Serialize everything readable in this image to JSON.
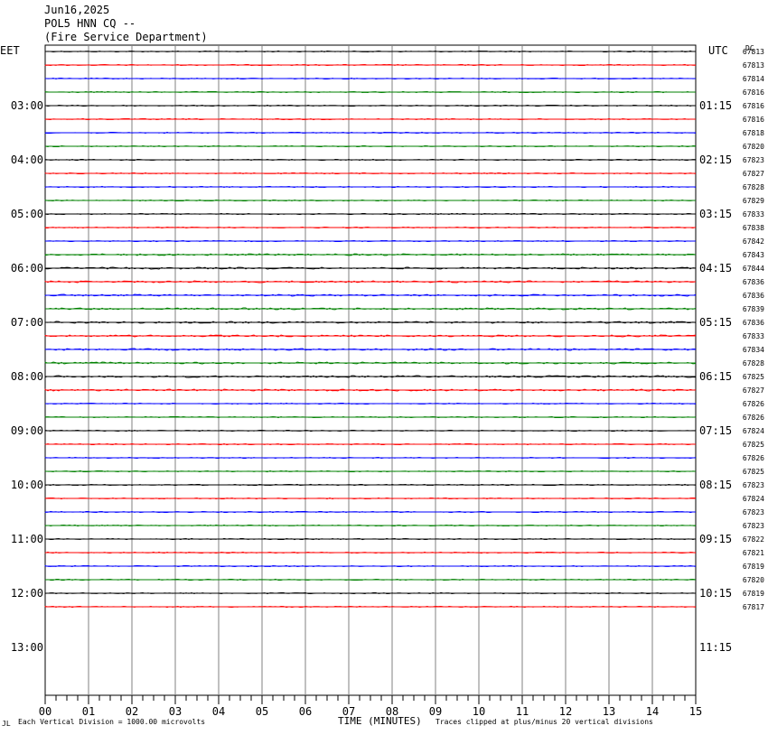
{
  "header": {
    "date": "Jun16,2025",
    "station": "POL5 HNN CQ --",
    "agency": "(Fire Service Department)"
  },
  "left_tz": "EET",
  "right_tz": "UTC",
  "corner_mark": "DC",
  "footer": {
    "mark": "JL",
    "scale_note": "Each Vertical Division = 1000.00 microvolts",
    "x_title": "TIME (MINUTES)",
    "clip_note": "Traces clipped at plus/minus 20 vertical divisions"
  },
  "colors": {
    "black": "#000000",
    "red": "#ff0000",
    "blue": "#0000ff",
    "green": "#008000",
    "grid": "#808080"
  },
  "chart_data": {
    "type": "line",
    "title": "",
    "xlabel": "TIME (MINUTES)",
    "xlim": [
      0,
      15
    ],
    "x_ticks": [
      "00",
      "01",
      "02",
      "03",
      "04",
      "05",
      "06",
      "07",
      "08",
      "09",
      "10",
      "11",
      "12",
      "13",
      "14",
      "15"
    ],
    "left_hour_labels": [
      "03:00",
      "04:00",
      "05:00",
      "06:00",
      "07:00",
      "08:00",
      "09:00",
      "10:00",
      "11:00",
      "12:00",
      "13:00"
    ],
    "right_hour_labels": [
      "01:15",
      "02:15",
      "03:15",
      "04:15",
      "05:15",
      "06:15",
      "07:15",
      "08:15",
      "09:15",
      "10:15",
      "11:15"
    ],
    "trace_color_cycle": [
      "black",
      "red",
      "blue",
      "green"
    ],
    "trace_values": [
      "67813",
      "67813",
      "67814",
      "67816",
      "67816",
      "67816",
      "67818",
      "67820",
      "67823",
      "67827",
      "67828",
      "67829",
      "67833",
      "67838",
      "67842",
      "67843",
      "67844",
      "67836",
      "67836",
      "67839",
      "67836",
      "67833",
      "67834",
      "67828",
      "67825",
      "67827",
      "67826",
      "67826",
      "67824",
      "67825",
      "67826",
      "67825",
      "67823",
      "67824",
      "67823",
      "67823",
      "67822",
      "67821",
      "67819",
      "67820",
      "67819",
      "67817"
    ]
  }
}
